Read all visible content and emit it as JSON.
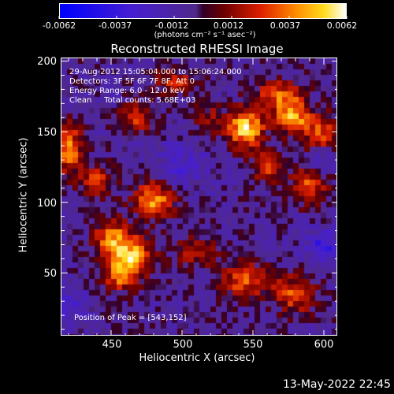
{
  "colorbar": {
    "ticks": [
      "-0.0062",
      "-0.0037",
      "-0.0012",
      "0.0012",
      "0.0037",
      "0.0062"
    ],
    "units_label": "(photons cm⁻² s⁻¹ asec⁻²)",
    "range": [
      -0.0062,
      0.0062
    ]
  },
  "title": "Reconstructed RHESSI Image",
  "info": {
    "time": "29-Aug-2012 15:05:04.000 to 15:06:24.000",
    "detectors": "Detectors: 3F 5F 6F 7F 8F, Att 0",
    "energy": "Energy Range: 6.0 - 12.0 keV",
    "clean": "Clean     Total counts: 5.68E+03",
    "peak": "Position of Peak = [543,152]"
  },
  "axes": {
    "xlabel": "Heliocentric X (arcsec)",
    "ylabel": "Heliocentric Y (arcsec)",
    "xticks": [
      "450",
      "500",
      "550",
      "600"
    ],
    "yticks": [
      "50",
      "100",
      "150",
      "200"
    ],
    "xlim": [
      415,
      610
    ],
    "ylim": [
      5,
      202
    ]
  },
  "footer": {
    "timestamp": "13-May-2022 22:45"
  },
  "peak_position": [
    543,
    152
  ],
  "sources": [
    {
      "x": 545,
      "y": 152,
      "amp": 1.0,
      "sx": 9,
      "sy": 9
    },
    {
      "x": 578,
      "y": 160,
      "amp": 0.8,
      "sx": 8,
      "sy": 8
    },
    {
      "x": 568,
      "y": 175,
      "amp": 0.6,
      "sx": 12,
      "sy": 8
    },
    {
      "x": 598,
      "y": 148,
      "amp": 0.6,
      "sx": 9,
      "sy": 10
    },
    {
      "x": 560,
      "y": 125,
      "amp": 0.5,
      "sx": 7,
      "sy": 8
    },
    {
      "x": 590,
      "y": 112,
      "amp": 0.6,
      "sx": 9,
      "sy": 10
    },
    {
      "x": 480,
      "y": 102,
      "amp": 0.8,
      "sx": 10,
      "sy": 9
    },
    {
      "x": 465,
      "y": 62,
      "amp": 0.85,
      "sx": 10,
      "sy": 10
    },
    {
      "x": 450,
      "y": 75,
      "amp": 0.7,
      "sx": 8,
      "sy": 9
    },
    {
      "x": 455,
      "y": 48,
      "amp": 0.6,
      "sx": 8,
      "sy": 8
    },
    {
      "x": 420,
      "y": 138,
      "amp": 0.75,
      "sx": 7,
      "sy": 12
    },
    {
      "x": 440,
      "y": 115,
      "amp": 0.5,
      "sx": 8,
      "sy": 8
    },
    {
      "x": 545,
      "y": 45,
      "amp": 0.65,
      "sx": 12,
      "sy": 8
    },
    {
      "x": 580,
      "y": 35,
      "amp": 0.6,
      "sx": 10,
      "sy": 9
    },
    {
      "x": 510,
      "y": 65,
      "amp": 0.45,
      "sx": 10,
      "sy": 7
    },
    {
      "x": 468,
      "y": 160,
      "amp": 0.5,
      "sx": 9,
      "sy": 7
    },
    {
      "x": 495,
      "y": 185,
      "amp": 0.45,
      "sx": 10,
      "sy": 6
    },
    {
      "x": 520,
      "y": 160,
      "amp": 0.3,
      "sx": 8,
      "sy": 8
    },
    {
      "x": 600,
      "y": 70,
      "amp": -0.45,
      "sx": 8,
      "sy": 8
    },
    {
      "x": 598,
      "y": 130,
      "amp": -0.4,
      "sx": 7,
      "sy": 8
    },
    {
      "x": 500,
      "y": 125,
      "amp": -0.3,
      "sx": 12,
      "sy": 10
    },
    {
      "x": 420,
      "y": 25,
      "amp": -0.3,
      "sx": 10,
      "sy": 10
    }
  ]
}
